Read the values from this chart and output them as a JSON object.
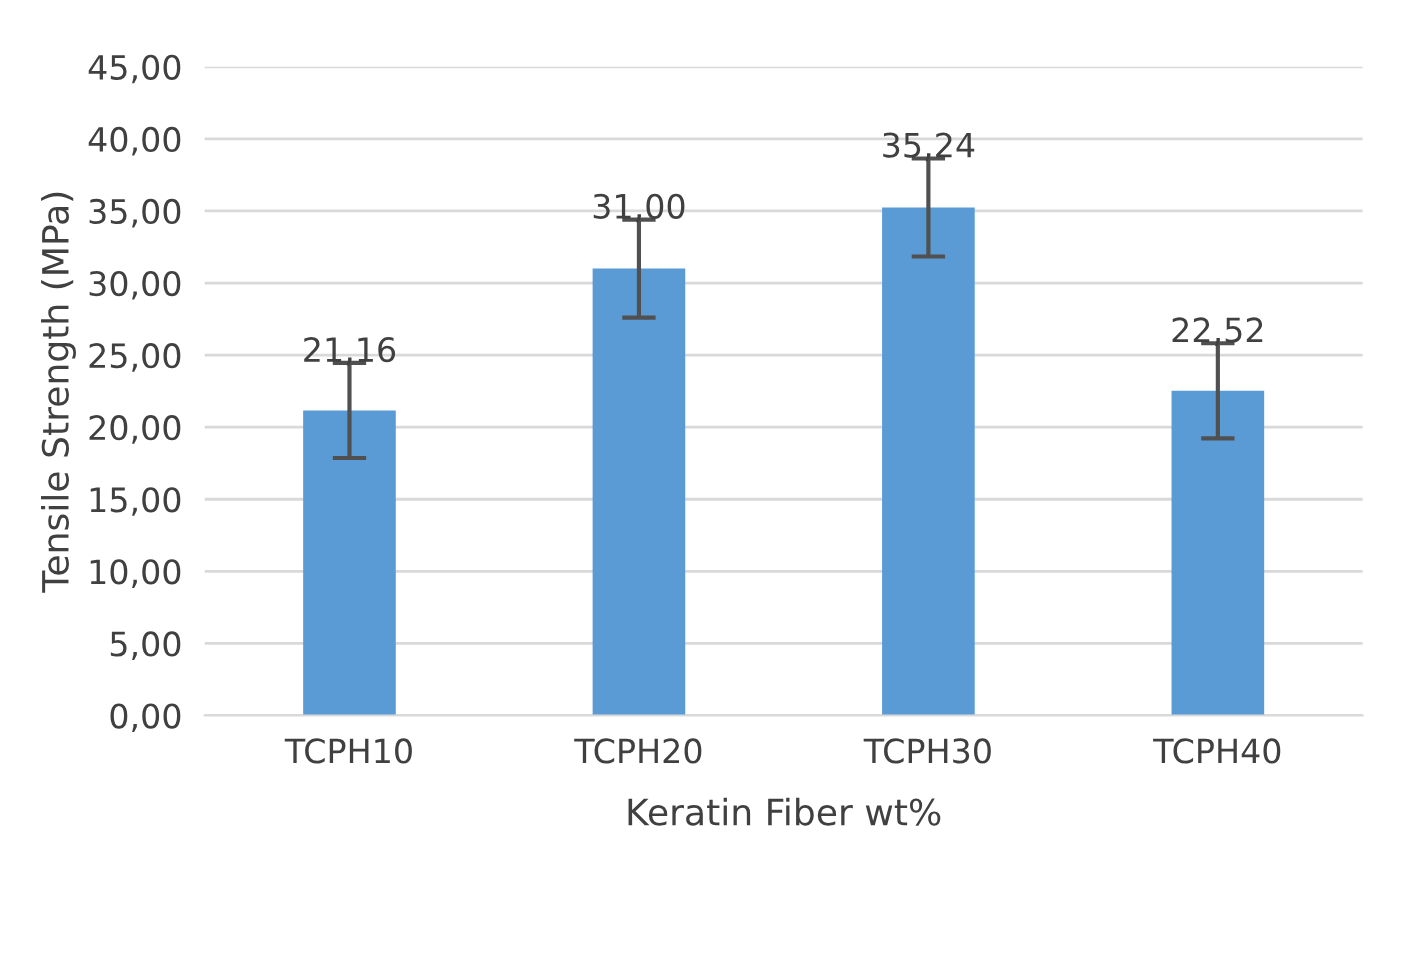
{
  "chart_data": {
    "type": "bar",
    "xlabel": "Keratin Fiber wt%",
    "ylabel": "Tensile Strength (MPa)",
    "categories": [
      "TCPH10",
      "TCPH20",
      "TCPH30",
      "TCPH40"
    ],
    "values": [
      21.16,
      31.0,
      35.24,
      22.52
    ],
    "errors": [
      3.3,
      3.4,
      3.4,
      3.3
    ],
    "value_labels": [
      "21,16",
      "31,00",
      "35,24",
      "22,52"
    ],
    "color": "#5b9bd5",
    "ylim": [
      0,
      45
    ],
    "yticks": [
      {
        "value": 0,
        "label": "0,00"
      },
      {
        "value": 5,
        "label": "5,00"
      },
      {
        "value": 10,
        "label": "10,00"
      },
      {
        "value": 15,
        "label": "15,00"
      },
      {
        "value": 20,
        "label": "20,00"
      },
      {
        "value": 25,
        "label": "25,00"
      },
      {
        "value": 30,
        "label": "30,00"
      },
      {
        "value": 35,
        "label": "35,00"
      },
      {
        "value": 40,
        "label": "40,00"
      },
      {
        "value": 45,
        "label": "45,00"
      }
    ],
    "grid": "y",
    "legend": false
  }
}
